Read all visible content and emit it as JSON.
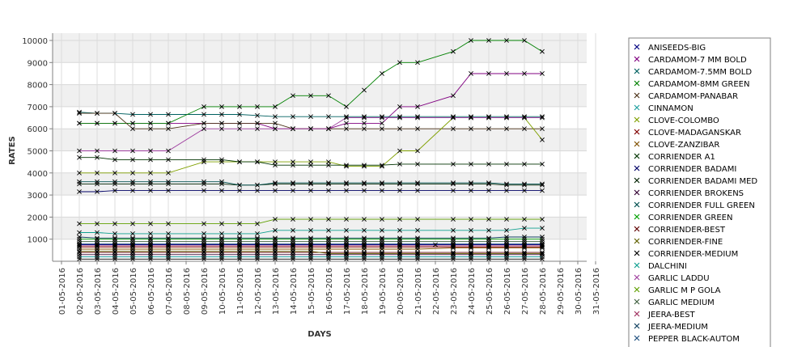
{
  "chart_data": {
    "type": "line",
    "xlabel": "DAYS",
    "ylabel": "RATES",
    "ylim": [
      0,
      10000
    ],
    "yticks": [
      1000,
      2000,
      3000,
      4000,
      5000,
      6000,
      7000,
      8000,
      9000,
      10000
    ],
    "categories": [
      "01-05-2016",
      "02-05-2016",
      "03-05-2016",
      "04-05-2016",
      "05-05-2016",
      "06-05-2016",
      "07-05-2016",
      "08-05-2016",
      "09-05-2016",
      "10-05-2016",
      "11-05-2016",
      "12-05-2016",
      "13-05-2016",
      "14-05-2016",
      "15-05-2016",
      "16-05-2016",
      "17-05-2016",
      "18-05-2016",
      "19-05-2016",
      "20-05-2016",
      "21-05-2016",
      "22-05-2016",
      "23-05-2016",
      "24-05-2016",
      "25-05-2016",
      "26-05-2016",
      "27-05-2016",
      "28-05-2016",
      "29-05-2016",
      "30-05-2016",
      "31-05-2016"
    ],
    "grid": true,
    "legend_position": "right",
    "series": [
      {
        "name": "ANISEEDS-BIG",
        "color": "#000080",
        "values": [
          null,
          750,
          750,
          750,
          750,
          750,
          750,
          null,
          750,
          750,
          750,
          750,
          750,
          750,
          750,
          750,
          750,
          750,
          750,
          750,
          750,
          750,
          750,
          750,
          750,
          750,
          750,
          750,
          null,
          null,
          null
        ]
      },
      {
        "name": "CARDAMOM-7 MM BOLD",
        "color": "#800080",
        "values": [
          null,
          6250,
          6250,
          6250,
          6250,
          6250,
          6250,
          null,
          6250,
          6250,
          6250,
          6250,
          6000,
          6000,
          6000,
          6000,
          6250,
          6250,
          6250,
          7000,
          7000,
          null,
          7500,
          8500,
          8500,
          8500,
          8500,
          8500,
          null,
          null,
          null
        ]
      },
      {
        "name": "CARDAMOM-7.5MM BOLD",
        "color": "#006060",
        "values": [
          null,
          6750,
          6700,
          6700,
          6650,
          6650,
          6650,
          null,
          6650,
          6650,
          6650,
          6600,
          6550,
          6550,
          6550,
          6550,
          6550,
          6550,
          6550,
          6550,
          6550,
          null,
          6550,
          6550,
          6550,
          6550,
          6550,
          6550,
          null,
          null,
          null
        ]
      },
      {
        "name": "CARDAMOM-8MM GREEN",
        "color": "#008000",
        "values": [
          null,
          6250,
          6250,
          6250,
          6250,
          6250,
          6250,
          null,
          7000,
          7000,
          7000,
          7000,
          7000,
          7500,
          7500,
          7500,
          7000,
          7750,
          8500,
          9000,
          9000,
          null,
          9500,
          10000,
          10000,
          10000,
          10000,
          9500,
          null,
          null,
          null
        ]
      },
      {
        "name": "CARDAMOM-PANABAR",
        "color": "#4d3319",
        "values": [
          null,
          6700,
          6700,
          6700,
          6000,
          6000,
          6000,
          null,
          6250,
          6250,
          6250,
          6250,
          6250,
          6000,
          6000,
          6000,
          6000,
          6000,
          6000,
          6000,
          6000,
          null,
          6000,
          6000,
          6000,
          6000,
          6000,
          6000,
          null,
          null,
          null
        ]
      },
      {
        "name": "CINNAMON",
        "color": "#20a0a0",
        "values": [
          null,
          200,
          200,
          200,
          200,
          200,
          200,
          null,
          200,
          200,
          200,
          200,
          200,
          200,
          200,
          200,
          200,
          200,
          200,
          200,
          200,
          null,
          200,
          200,
          200,
          200,
          200,
          200,
          null,
          null,
          null
        ]
      },
      {
        "name": "CLOVE-COLOMBO",
        "color": "#80a000",
        "values": [
          null,
          4000,
          4000,
          4000,
          4000,
          4000,
          4000,
          null,
          4500,
          4500,
          4500,
          4500,
          4500,
          4500,
          4500,
          4500,
          4300,
          4300,
          4300,
          5000,
          5000,
          null,
          6500,
          6500,
          6500,
          6500,
          6500,
          5500,
          null,
          null,
          null
        ]
      },
      {
        "name": "CLOVE-MADAGANSKAR",
        "color": "#800000",
        "values": [
          null,
          650,
          650,
          650,
          650,
          650,
          650,
          null,
          650,
          650,
          650,
          650,
          650,
          650,
          650,
          650,
          650,
          650,
          650,
          650,
          650,
          null,
          650,
          650,
          650,
          650,
          650,
          650,
          null,
          null,
          null
        ]
      },
      {
        "name": "CLOVE-ZANZIBAR",
        "color": "#805000",
        "values": [
          null,
          550,
          550,
          550,
          550,
          550,
          550,
          null,
          550,
          550,
          550,
          550,
          550,
          550,
          550,
          550,
          550,
          550,
          550,
          550,
          550,
          null,
          600,
          600,
          600,
          600,
          600,
          600,
          null,
          null,
          null
        ]
      },
      {
        "name": "CORRIENDER A1",
        "color": "#003300",
        "values": [
          null,
          4700,
          4700,
          4600,
          4600,
          4600,
          4600,
          null,
          4600,
          4600,
          4500,
          4500,
          4350,
          4350,
          4350,
          4350,
          4350,
          4350,
          4350,
          4400,
          4400,
          null,
          4400,
          4400,
          4400,
          4400,
          4400,
          4400,
          null,
          null,
          null
        ]
      },
      {
        "name": "CORRIENDER BADAMI",
        "color": "#000066",
        "values": [
          null,
          3150,
          3150,
          3200,
          3200,
          3200,
          3200,
          null,
          3200,
          3200,
          3200,
          3200,
          3200,
          3200,
          3200,
          3200,
          3200,
          3200,
          3200,
          3200,
          3200,
          null,
          3200,
          3200,
          3200,
          3200,
          3200,
          3200,
          null,
          null,
          null
        ]
      },
      {
        "name": "CORRIENDER BADAMI MED",
        "color": "#002200",
        "values": [
          null,
          3500,
          3500,
          3500,
          3500,
          3500,
          3500,
          null,
          3500,
          3500,
          3450,
          3450,
          3500,
          3500,
          3500,
          3500,
          3500,
          3500,
          3500,
          3500,
          3500,
          null,
          3500,
          3500,
          3500,
          3450,
          3450,
          3450,
          null,
          null,
          null
        ]
      },
      {
        "name": "CORRIENDER BROKENS",
        "color": "#330033",
        "values": [
          null,
          300,
          300,
          300,
          300,
          300,
          300,
          null,
          300,
          300,
          300,
          300,
          300,
          300,
          300,
          300,
          300,
          300,
          300,
          300,
          300,
          null,
          300,
          300,
          300,
          300,
          300,
          300,
          null,
          null,
          null
        ]
      },
      {
        "name": "CORRIENDER FULL GREEN",
        "color": "#005050",
        "values": [
          null,
          3600,
          3600,
          3600,
          3600,
          3600,
          3600,
          null,
          3600,
          3600,
          3450,
          3450,
          3550,
          3550,
          3550,
          3550,
          3550,
          3550,
          3550,
          3550,
          3550,
          null,
          3550,
          3550,
          3550,
          3500,
          3500,
          3500,
          null,
          null,
          null
        ]
      },
      {
        "name": "CORRIENDER GREEN",
        "color": "#00a000",
        "values": [
          null,
          1000,
          1000,
          1000,
          1000,
          1000,
          1000,
          null,
          1000,
          1000,
          1000,
          1000,
          1000,
          1000,
          1000,
          1000,
          1000,
          1000,
          1000,
          1000,
          1000,
          null,
          1000,
          1000,
          1000,
          1000,
          1000,
          1000,
          null,
          null,
          null
        ]
      },
      {
        "name": "CORRIENDER-BEST",
        "color": "#600000",
        "values": [
          null,
          400,
          400,
          400,
          400,
          400,
          400,
          null,
          400,
          400,
          400,
          400,
          400,
          400,
          400,
          400,
          400,
          400,
          400,
          400,
          400,
          null,
          400,
          400,
          400,
          400,
          400,
          400,
          null,
          null,
          null
        ]
      },
      {
        "name": "CORRIENDER-FINE",
        "color": "#606000",
        "values": [
          null,
          450,
          450,
          450,
          450,
          450,
          450,
          null,
          450,
          450,
          450,
          450,
          450,
          450,
          450,
          350,
          350,
          350,
          350,
          350,
          350,
          null,
          350,
          350,
          350,
          350,
          350,
          350,
          null,
          null,
          null
        ]
      },
      {
        "name": "CORRIENDER-MEDIUM",
        "color": "#000000",
        "values": [
          null,
          100,
          100,
          100,
          100,
          100,
          100,
          null,
          100,
          100,
          100,
          100,
          100,
          100,
          100,
          100,
          100,
          100,
          100,
          100,
          100,
          null,
          100,
          100,
          100,
          100,
          100,
          100,
          null,
          null,
          null
        ]
      },
      {
        "name": "DALCHINI",
        "color": "#10a090",
        "values": [
          null,
          1300,
          1300,
          1250,
          1250,
          1250,
          1250,
          null,
          1250,
          1250,
          1250,
          1250,
          1400,
          1400,
          1400,
          1400,
          1400,
          1400,
          1400,
          1400,
          1400,
          null,
          1400,
          1400,
          1400,
          1400,
          1500,
          1500,
          null,
          null,
          null
        ]
      },
      {
        "name": "GARLIC LADDU",
        "color": "#a040a0",
        "values": [
          null,
          5000,
          5000,
          5000,
          5000,
          5000,
          5000,
          null,
          6000,
          6000,
          6000,
          6000,
          6000,
          6000,
          6000,
          6000,
          6500,
          6500,
          6500,
          6500,
          6500,
          null,
          6500,
          6500,
          6500,
          6500,
          6500,
          6500,
          null,
          null,
          null
        ]
      },
      {
        "name": "GARLIC M P GOLA",
        "color": "#60a000",
        "values": [
          null,
          1700,
          1700,
          1700,
          1700,
          1700,
          1700,
          null,
          1700,
          1700,
          1700,
          1700,
          1900,
          1900,
          1900,
          1900,
          1900,
          1900,
          1900,
          1900,
          1900,
          null,
          1900,
          1900,
          1900,
          1900,
          1900,
          1900,
          null,
          null,
          null
        ]
      },
      {
        "name": "GARLIC MEDIUM",
        "color": "#406040",
        "values": [
          null,
          900,
          900,
          900,
          900,
          900,
          900,
          null,
          900,
          900,
          900,
          900,
          900,
          900,
          900,
          900,
          900,
          900,
          900,
          900,
          900,
          null,
          900,
          900,
          900,
          900,
          900,
          900,
          null,
          null,
          null
        ]
      },
      {
        "name": "JEERA-BEST",
        "color": "#a03060",
        "values": [
          null,
          700,
          700,
          700,
          700,
          700,
          700,
          null,
          700,
          700,
          700,
          700,
          700,
          700,
          700,
          700,
          700,
          700,
          700,
          700,
          700,
          null,
          700,
          700,
          700,
          700,
          700,
          700,
          null,
          null,
          null
        ]
      },
      {
        "name": "JEERA-MEDIUM",
        "color": "#104060",
        "values": [
          null,
          1100,
          1050,
          1050,
          1050,
          1050,
          1050,
          null,
          1050,
          1050,
          1050,
          1050,
          1050,
          1050,
          1050,
          1050,
          1050,
          1050,
          1050,
          1050,
          1050,
          null,
          1050,
          1050,
          1050,
          1100,
          1100,
          1100,
          null,
          null,
          null
        ]
      },
      {
        "name": "PEPPER BLACK-AUTOM",
        "color": "#205080",
        "values": [
          null,
          800,
          800,
          800,
          800,
          800,
          800,
          null,
          800,
          800,
          800,
          800,
          800,
          800,
          800,
          800,
          800,
          800,
          800,
          800,
          800,
          null,
          800,
          800,
          800,
          800,
          800,
          800,
          null,
          null,
          null
        ]
      }
    ]
  }
}
